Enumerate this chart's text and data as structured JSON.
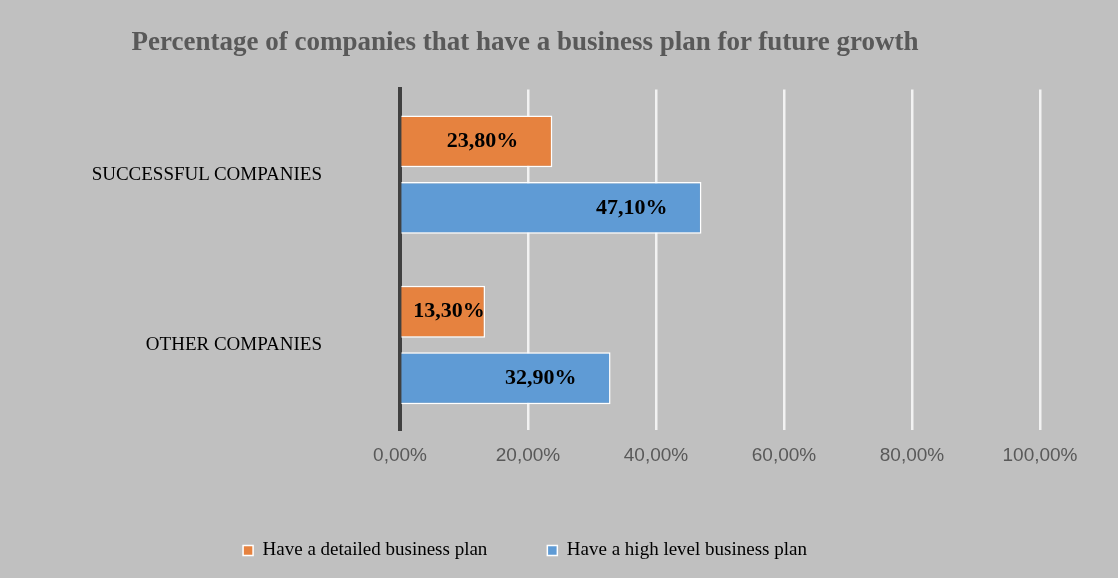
{
  "chart_data": {
    "type": "bar",
    "orientation": "horizontal",
    "title": "Percentage of companies that have a business plan for future growth",
    "categories": [
      "SUCCESSFUL COMPANIES",
      "OTHER COMPANIES"
    ],
    "series": [
      {
        "name": "Have a detailed business plan",
        "color": "#e6823f",
        "values": [
          23.8,
          13.3
        ],
        "value_labels": [
          "23,80%",
          "13,30%"
        ]
      },
      {
        "name": "Have a high level business plan",
        "color": "#5f9bd5",
        "values": [
          47.1,
          32.9
        ],
        "value_labels": [
          "47,10%",
          "32,90%"
        ]
      }
    ],
    "xlim": [
      0,
      100
    ],
    "xticks": [
      {
        "value": 0,
        "label": "0,00%"
      },
      {
        "value": 20,
        "label": "20,00%"
      },
      {
        "value": 40,
        "label": "40,00%"
      },
      {
        "value": 60,
        "label": "60,00%"
      },
      {
        "value": 80,
        "label": "80,00%"
      },
      {
        "value": 100,
        "label": "100,00%"
      }
    ],
    "grid": "x",
    "legend": "bottom"
  }
}
